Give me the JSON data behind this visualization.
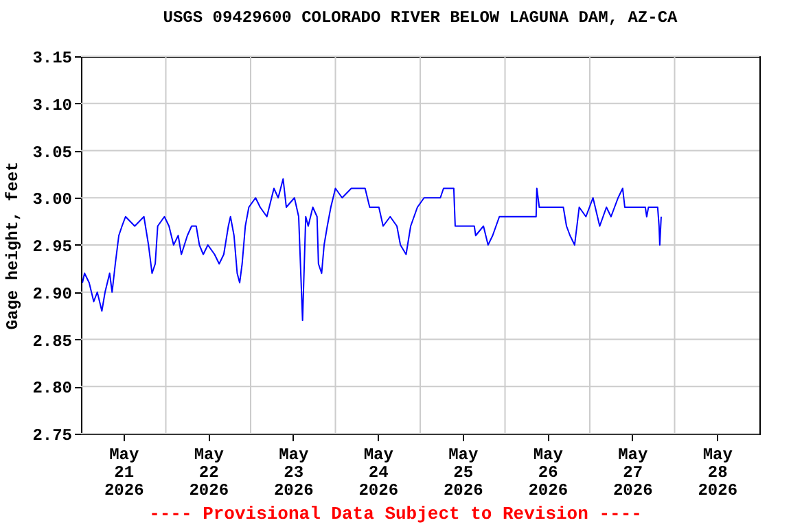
{
  "chart_data": {
    "type": "line",
    "title": "USGS 09429600 COLORADO RIVER BELOW LAGUNA DAM, AZ-CA",
    "ylabel": "Gage height, feet",
    "annotations": [
      "---- Provisional Data Subject to Revision ----"
    ],
    "x": [
      "2026-05-21T00:24",
      "2026-05-21T01:00",
      "2026-05-21T02:18",
      "2026-05-21T03:36",
      "2026-05-21T04:36",
      "2026-05-21T05:54",
      "2026-05-21T06:48",
      "2026-05-21T08:06",
      "2026-05-21T08:48",
      "2026-05-21T09:42",
      "2026-05-21T10:42",
      "2026-05-21T11:36",
      "2026-05-21T12:36",
      "2026-05-21T15:12",
      "2026-05-21T17:48",
      "2026-05-21T19:06",
      "2026-05-21T20:06",
      "2026-05-21T21:00",
      "2026-05-21T21:42",
      "2026-05-21T23:36",
      "2026-05-22T00:54",
      "2026-05-22T02:12",
      "2026-05-22T03:30",
      "2026-05-22T04:24",
      "2026-05-22T06:06",
      "2026-05-22T07:18",
      "2026-05-22T08:36",
      "2026-05-22T09:30",
      "2026-05-22T10:36",
      "2026-05-22T11:54",
      "2026-05-22T13:48",
      "2026-05-22T15:06",
      "2026-05-22T16:24",
      "2026-05-22T17:42",
      "2026-05-22T18:18",
      "2026-05-22T19:18",
      "2026-05-22T20:12",
      "2026-05-22T20:54",
      "2026-05-22T21:36",
      "2026-05-22T22:30",
      "2026-05-22T23:30",
      "2026-05-23T01:24",
      "2026-05-23T02:42",
      "2026-05-23T04:36",
      "2026-05-23T06:36",
      "2026-05-23T07:48",
      "2026-05-23T09:12",
      "2026-05-23T10:06",
      "2026-05-23T12:24",
      "2026-05-23T13:36",
      "2026-05-23T14:42",
      "2026-05-23T15:36",
      "2026-05-23T16:18",
      "2026-05-23T17:36",
      "2026-05-23T18:48",
      "2026-05-23T19:12",
      "2026-05-23T20:06",
      "2026-05-23T20:48",
      "2026-05-23T21:42",
      "2026-05-23T22:42",
      "2026-05-24T00:00",
      "2026-05-24T01:54",
      "2026-05-24T04:30",
      "2026-05-24T08:24",
      "2026-05-24T09:42",
      "2026-05-24T12:18",
      "2026-05-24T13:30",
      "2026-05-24T15:30",
      "2026-05-24T17:24",
      "2026-05-24T18:24",
      "2026-05-24T20:00",
      "2026-05-24T21:18",
      "2026-05-24T23:12",
      "2026-05-25T01:06",
      "2026-05-25T05:42",
      "2026-05-25T06:36",
      "2026-05-25T09:30",
      "2026-05-25T09:54",
      "2026-05-25T15:18",
      "2026-05-25T15:42",
      "2026-05-25T17:54",
      "2026-05-25T19:12",
      "2026-05-25T20:30",
      "2026-05-25T22:24",
      "2026-05-26T00:24",
      "2026-05-26T08:48",
      "2026-05-26T09:00",
      "2026-05-26T09:42",
      "2026-05-26T16:30",
      "2026-05-26T17:24",
      "2026-05-26T18:24",
      "2026-05-26T19:42",
      "2026-05-26T21:00",
      "2026-05-26T22:54",
      "2026-05-27T00:54",
      "2026-05-27T02:48",
      "2026-05-27T04:42",
      "2026-05-27T06:00",
      "2026-05-27T08:00",
      "2026-05-27T09:18",
      "2026-05-27T09:54",
      "2026-05-27T15:42",
      "2026-05-27T16:06",
      "2026-05-27T16:36",
      "2026-05-27T19:12",
      "2026-05-27T19:36",
      "2026-05-27T19:48",
      "2026-05-27T20:12"
    ],
    "series": [
      {
        "color": "#0000ff",
        "values": [
          2.91,
          2.92,
          2.91,
          2.89,
          2.9,
          2.88,
          2.9,
          2.92,
          2.9,
          2.93,
          2.96,
          2.97,
          2.98,
          2.97,
          2.98,
          2.95,
          2.92,
          2.93,
          2.97,
          2.98,
          2.97,
          2.95,
          2.96,
          2.94,
          2.96,
          2.97,
          2.97,
          2.95,
          2.94,
          2.95,
          2.94,
          2.93,
          2.94,
          2.97,
          2.98,
          2.96,
          2.92,
          2.91,
          2.93,
          2.97,
          2.99,
          3.0,
          2.99,
          2.98,
          3.01,
          3.0,
          3.02,
          2.99,
          3.0,
          2.98,
          2.87,
          2.98,
          2.97,
          2.99,
          2.98,
          2.93,
          2.92,
          2.95,
          2.97,
          2.99,
          3.01,
          3.0,
          3.01,
          3.01,
          2.99,
          2.99,
          2.97,
          2.98,
          2.97,
          2.95,
          2.94,
          2.97,
          2.99,
          3.0,
          3.0,
          3.01,
          3.01,
          2.97,
          2.97,
          2.96,
          2.97,
          2.95,
          2.96,
          2.98,
          2.98,
          2.98,
          3.01,
          2.99,
          2.99,
          2.97,
          2.96,
          2.95,
          2.99,
          2.98,
          3.0,
          2.97,
          2.99,
          2.98,
          3.0,
          3.01,
          2.99,
          2.99,
          2.98,
          2.99,
          2.99,
          2.97,
          2.95,
          2.98
        ]
      }
    ],
    "xlim": [
      "2026-05-21T00:00",
      "2026-05-29T00:00"
    ],
    "xticks": [
      {
        "value": "2026-05-21T12:00",
        "label": "May 21 2026"
      },
      {
        "value": "2026-05-22T12:00",
        "label": "May 22 2026"
      },
      {
        "value": "2026-05-23T12:00",
        "label": "May 23 2026"
      },
      {
        "value": "2026-05-24T12:00",
        "label": "May 24 2026"
      },
      {
        "value": "2026-05-25T12:00",
        "label": "May 25 2026"
      },
      {
        "value": "2026-05-26T12:00",
        "label": "May 26 2026"
      },
      {
        "value": "2026-05-27T12:00",
        "label": "May 27 2026"
      },
      {
        "value": "2026-05-28T12:00",
        "label": "May 28 2026"
      },
      {
        "value": "2026-05-22T00:00",
        "label": null
      },
      {
        "value": "2026-05-23T00:00",
        "label": null
      },
      {
        "value": "2026-05-24T00:00",
        "label": null
      },
      {
        "value": "2026-05-25T00:00",
        "label": null
      },
      {
        "value": "2026-05-26T00:00",
        "label": null
      },
      {
        "value": "2026-05-27T00:00",
        "label": null
      },
      {
        "value": "2026-05-28T00:00",
        "label": null
      }
    ],
    "ylim": [
      2.75,
      3.15
    ],
    "yticks": [
      {
        "value": 2.75,
        "label": "2.75"
      },
      {
        "value": 2.8,
        "label": "2.80"
      },
      {
        "value": 2.85,
        "label": "2.85"
      },
      {
        "value": 2.9,
        "label": "2.90"
      },
      {
        "value": 2.95,
        "label": "2.95"
      },
      {
        "value": 3.0,
        "label": "3.00"
      },
      {
        "value": 3.05,
        "label": "3.05"
      },
      {
        "value": 3.1,
        "label": "3.10"
      },
      {
        "value": 3.15,
        "label": "3.15"
      }
    ],
    "grid": true
  }
}
